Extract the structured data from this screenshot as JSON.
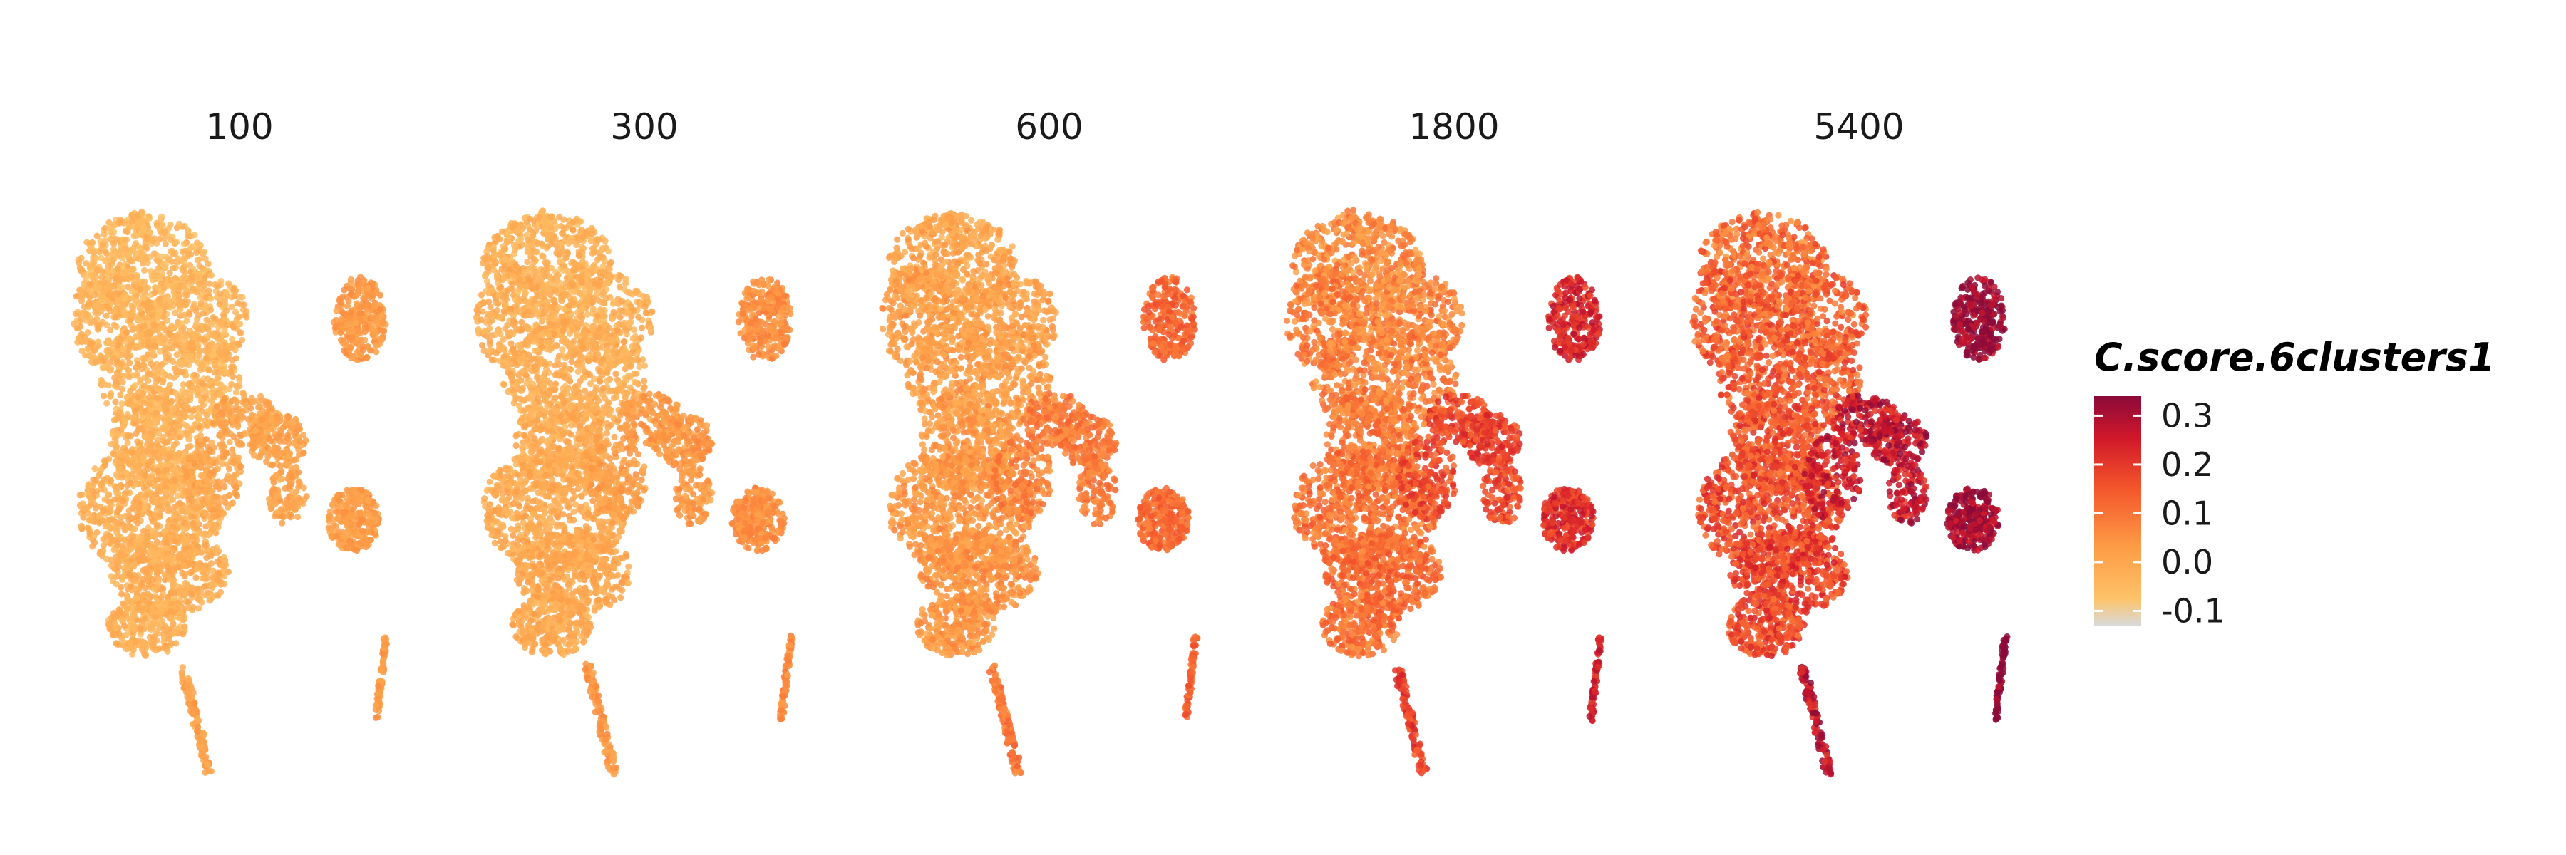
{
  "colors": {
    "background": "#ffffff",
    "scale": [
      "#d9d9d9",
      "#feb24c",
      "#fd8d3c",
      "#f03b20",
      "#bd0026",
      "#8b0a3a"
    ]
  },
  "chart_data": {
    "type": "scatter",
    "description_kind": "faceted UMAP feature plot",
    "panels": [
      {
        "title": "100",
        "intensity": 0.08
      },
      {
        "title": "300",
        "intensity": 0.14
      },
      {
        "title": "600",
        "intensity": 0.3
      },
      {
        "title": "1800",
        "intensity": 0.55
      },
      {
        "title": "5400",
        "intensity": 0.8
      }
    ],
    "legend": {
      "title": "C.score.6clusters1",
      "ticks": [
        "0.3",
        "0.2",
        "0.1",
        "0.0",
        "-0.1"
      ],
      "range": [
        -0.13,
        0.34
      ]
    },
    "grid": false,
    "axes_visible": false
  }
}
